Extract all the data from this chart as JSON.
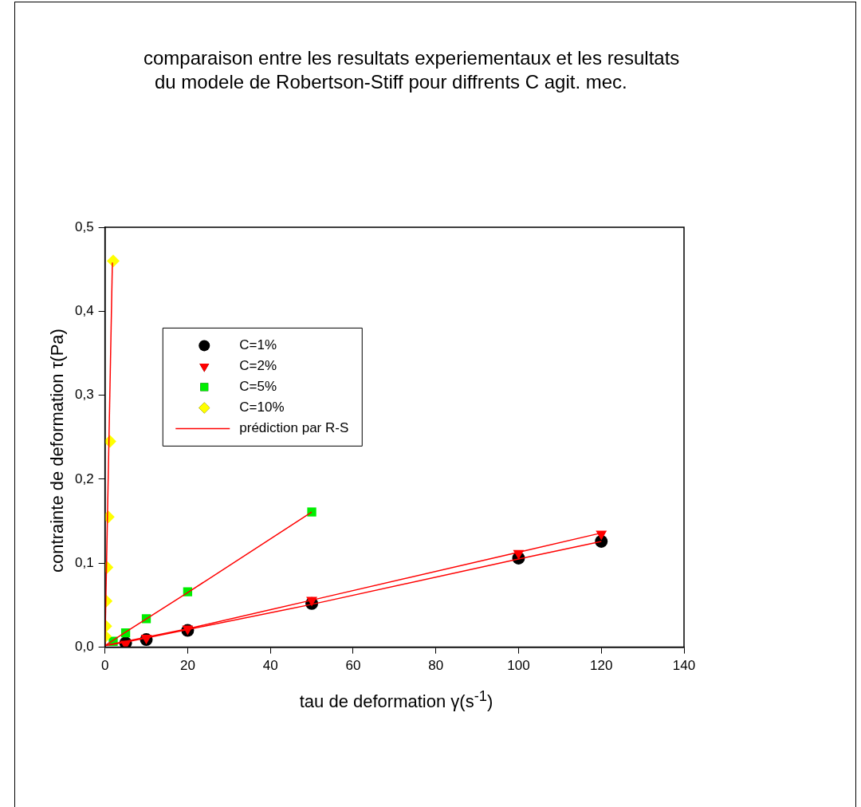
{
  "chart_data": {
    "type": "scatter",
    "title": "comparaison entre les resultats experiementaux et les resultats\ndu modele de Robertson-Stiff pour diffrents C agit. mec.",
    "xlabel": "tau de deformation γ(s$^{-1}$)",
    "ylabel": "contrainte de deformation τ(Pa)",
    "xlim": [
      0,
      140
    ],
    "xticks": [
      0,
      20,
      40,
      60,
      80,
      100,
      120,
      140
    ],
    "ylim": [
      0,
      0.5
    ],
    "yticks": [
      {
        "value": 0,
        "label": "0,0"
      },
      {
        "value": 0.1,
        "label": "0,1"
      },
      {
        "value": 0.2,
        "label": "0,2"
      },
      {
        "value": 0.3,
        "label": "0,3"
      },
      {
        "value": 0.4,
        "label": "0,4"
      },
      {
        "value": 0.5,
        "label": "0,5"
      }
    ],
    "grid": false,
    "legend": "top left",
    "series": [
      {
        "name": "C=1%",
        "type": "scatter",
        "marker": "circle",
        "color": "#000000",
        "x": [
          5,
          10,
          20,
          50,
          100,
          120
        ],
        "values": [
          0.005,
          0.009,
          0.02,
          0.052,
          0.106,
          0.126
        ]
      },
      {
        "name": "C=2%",
        "type": "scatter",
        "marker": "triangle",
        "color": "#ff0000",
        "x": [
          5,
          10,
          20,
          50,
          100,
          120
        ],
        "values": [
          0.004,
          0.011,
          0.022,
          0.056,
          0.112,
          0.135
        ]
      },
      {
        "name": "C=5%",
        "type": "scatter",
        "marker": "square",
        "color": "#00ee00",
        "x": [
          2,
          5,
          10,
          20,
          50
        ],
        "values": [
          0.007,
          0.017,
          0.034,
          0.066,
          0.161
        ]
      },
      {
        "name": "C=10%",
        "type": "scatter",
        "marker": "diamond",
        "color": "#ffff00",
        "x": [
          0.1,
          0.2,
          0.3,
          0.5,
          0.8,
          1.2,
          2
        ],
        "values": [
          0.013,
          0.025,
          0.055,
          0.095,
          0.155,
          0.245,
          0.46
        ]
      },
      {
        "name": "prédiction par R-S",
        "type": "line",
        "marker": "none",
        "color": "#ff0000",
        "x": [
          0.1,
          5,
          20,
          50,
          100,
          120
        ],
        "values": [
          0.002,
          0.006,
          0.021,
          0.051,
          0.105,
          0.126
        ]
      },
      {
        "type": "line",
        "marker": "none",
        "color": "#ff0000",
        "x": [
          0.1,
          5,
          20,
          50,
          100,
          120
        ],
        "values": [
          0.002,
          0.007,
          0.022,
          0.056,
          0.113,
          0.136
        ]
      },
      {
        "type": "line",
        "marker": "none",
        "color": "#ff0000",
        "x": [
          0.1,
          5,
          20,
          50
        ],
        "values": [
          0.002,
          0.018,
          0.065,
          0.161
        ]
      },
      {
        "type": "line",
        "marker": "none",
        "color": "#ff0000",
        "x": [
          0,
          1.8
        ],
        "values": [
          0,
          0.458
        ]
      }
    ]
  }
}
